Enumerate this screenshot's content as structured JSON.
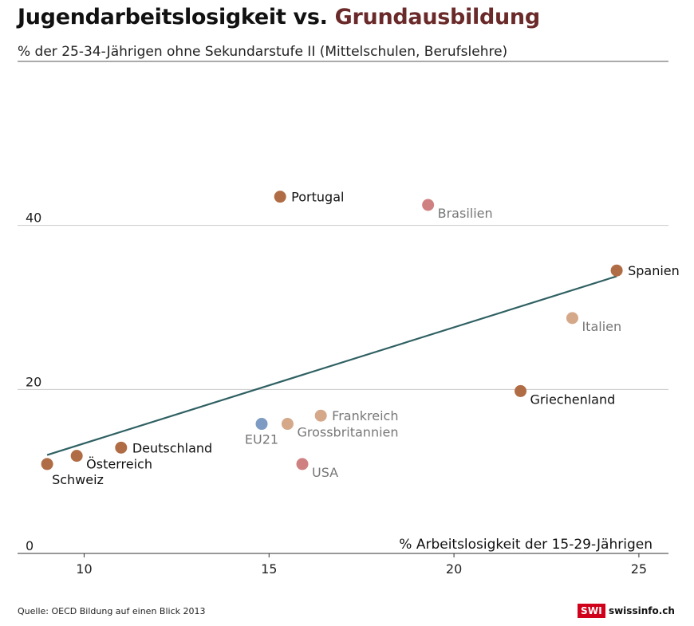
{
  "title": {
    "part1": "Jugendarbeitslosigkeit vs. ",
    "part2": "Grundausbildung"
  },
  "source": "Quelle: OECD Bildung auf einen Blick 2013",
  "brand": {
    "badge": "SWI",
    "name": "swissinfo.ch"
  },
  "colors": {
    "accent_title": "#6b2a2a",
    "trend": "#2f6062",
    "point_dark": "#b06d45",
    "point_light": "#d5a889",
    "point_pink": "#cf8182",
    "point_blue": "#7d9bc3"
  },
  "chart_data": {
    "type": "scatter",
    "title": "Jugendarbeitslosigkeit vs. Grundausbildung",
    "subtitle": "% der 25-34-Jährigen ohne Sekundarstufe II (Mittelschulen, Berufslehre)",
    "xlabel": "% Arbeitslosigkeit der 15-29-Jährigen",
    "ylabel": "% der 25-34-Jährigen ohne Sekundarstufe II (Mittelschulen, Berufslehre)",
    "xlim": [
      8.2,
      25.8
    ],
    "ylim": [
      0,
      60
    ],
    "xticks": [
      10,
      15,
      20,
      25
    ],
    "yticks": [
      0,
      20,
      40
    ],
    "grid": "horizontal",
    "points": [
      {
        "label": "Portugal",
        "x": 15.3,
        "y": 43.5,
        "color": "dark",
        "label_pos": "right"
      },
      {
        "label": "Brasilien",
        "x": 19.3,
        "y": 42.5,
        "color": "pink",
        "label_pos": "right-below"
      },
      {
        "label": "Spanien",
        "x": 24.4,
        "y": 34.5,
        "color": "dark",
        "label_pos": "right"
      },
      {
        "label": "Italien",
        "x": 23.2,
        "y": 28.7,
        "color": "light",
        "label_pos": "right-below"
      },
      {
        "label": "Griechenland",
        "x": 21.8,
        "y": 19.8,
        "color": "dark",
        "label_pos": "right-below"
      },
      {
        "label": "Frankreich",
        "x": 16.4,
        "y": 16.8,
        "color": "light",
        "label_pos": "right"
      },
      {
        "label": "Grossbritannien",
        "x": 15.5,
        "y": 15.8,
        "color": "light",
        "label_pos": "right-below"
      },
      {
        "label": "EU21",
        "x": 14.8,
        "y": 15.8,
        "color": "blue",
        "label_pos": "below"
      },
      {
        "label": "USA",
        "x": 15.9,
        "y": 10.9,
        "color": "pink",
        "label_pos": "right-below"
      },
      {
        "label": "Deutschland",
        "x": 11.0,
        "y": 12.9,
        "color": "dark",
        "label_pos": "right"
      },
      {
        "label": "Österreich",
        "x": 9.8,
        "y": 11.9,
        "color": "dark",
        "label_pos": "right-below"
      },
      {
        "label": "Schweiz",
        "x": 9.0,
        "y": 10.9,
        "color": "dark",
        "label_pos": "below-right"
      }
    ],
    "trendline": {
      "x": [
        9.0,
        24.4
      ],
      "y": [
        12.0,
        33.8
      ]
    }
  }
}
